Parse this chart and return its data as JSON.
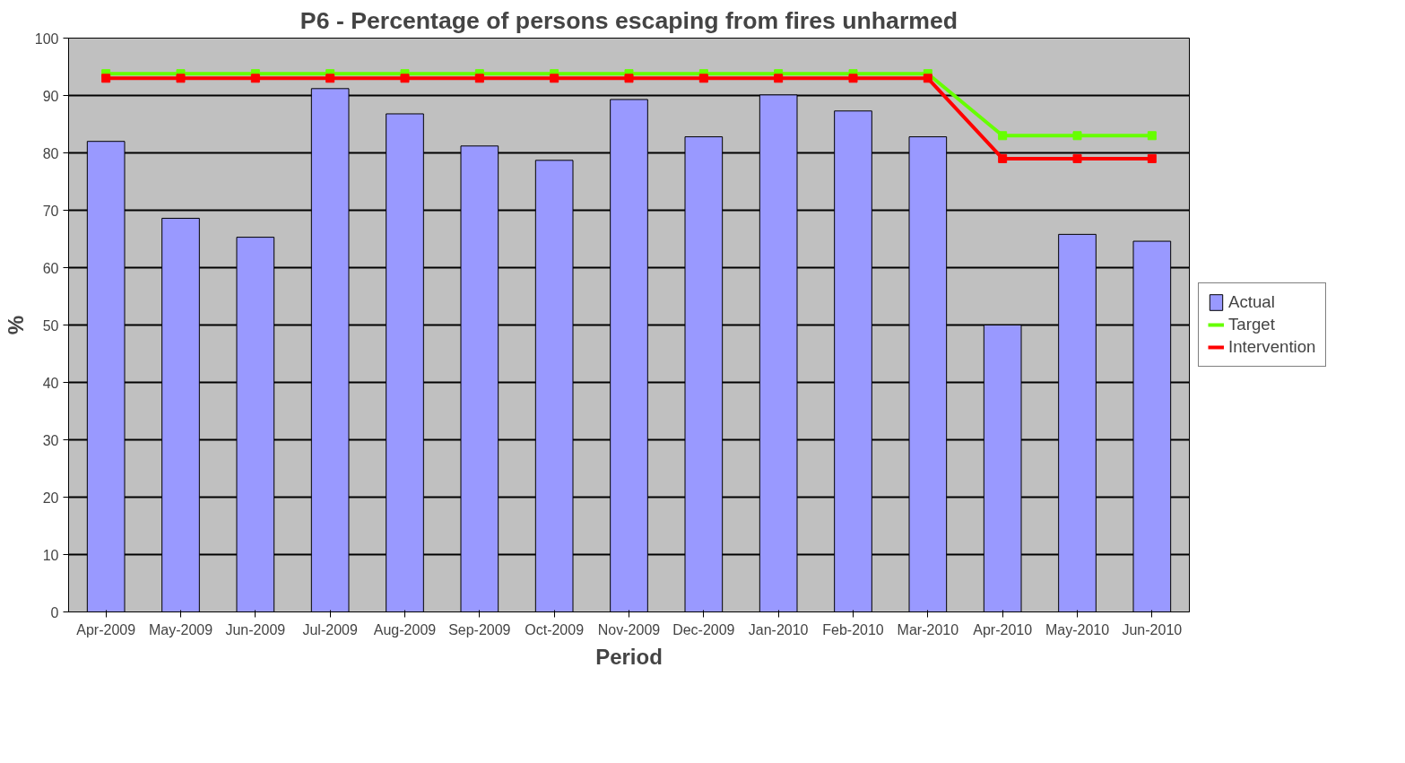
{
  "chart_data": {
    "type": "bar",
    "title": "P6 - Percentage of persons escaping from fires unharmed",
    "xlabel": "Period",
    "ylabel": "%",
    "categories": [
      "Apr-2009",
      "May-2009",
      "Jun-2009",
      "Jul-2009",
      "Aug-2009",
      "Sep-2009",
      "Oct-2009",
      "Nov-2009",
      "Dec-2009",
      "Jan-2010",
      "Feb-2010",
      "Mar-2010",
      "Apr-2010",
      "May-2010",
      "Jun-2010"
    ],
    "series": [
      {
        "name": "Actual",
        "color": "#9999ff",
        "values": [
          82,
          68.6,
          65.3,
          91.2,
          86.8,
          81.2,
          78.7,
          89.3,
          82.8,
          90.1,
          87.3,
          82.8,
          50,
          65.8,
          64.6
        ]
      },
      {
        "name": "Target",
        "type": "line",
        "color": "#66ff00",
        "values": [
          93.8,
          93.8,
          93.8,
          93.8,
          93.8,
          93.8,
          93.8,
          93.8,
          93.8,
          93.8,
          93.8,
          93.8,
          83,
          83,
          83
        ]
      },
      {
        "name": "Intervention",
        "type": "line",
        "color": "#ff0000",
        "values": [
          93,
          93,
          93,
          93,
          93,
          93,
          93,
          93,
          93,
          93,
          93,
          93,
          79,
          79,
          79
        ]
      }
    ],
    "ylim": [
      0,
      100
    ],
    "yticks": [
      0,
      10,
      20,
      30,
      40,
      50,
      60,
      70,
      80,
      90,
      100
    ],
    "grid": "y",
    "legend": "right",
    "marker": "square"
  }
}
